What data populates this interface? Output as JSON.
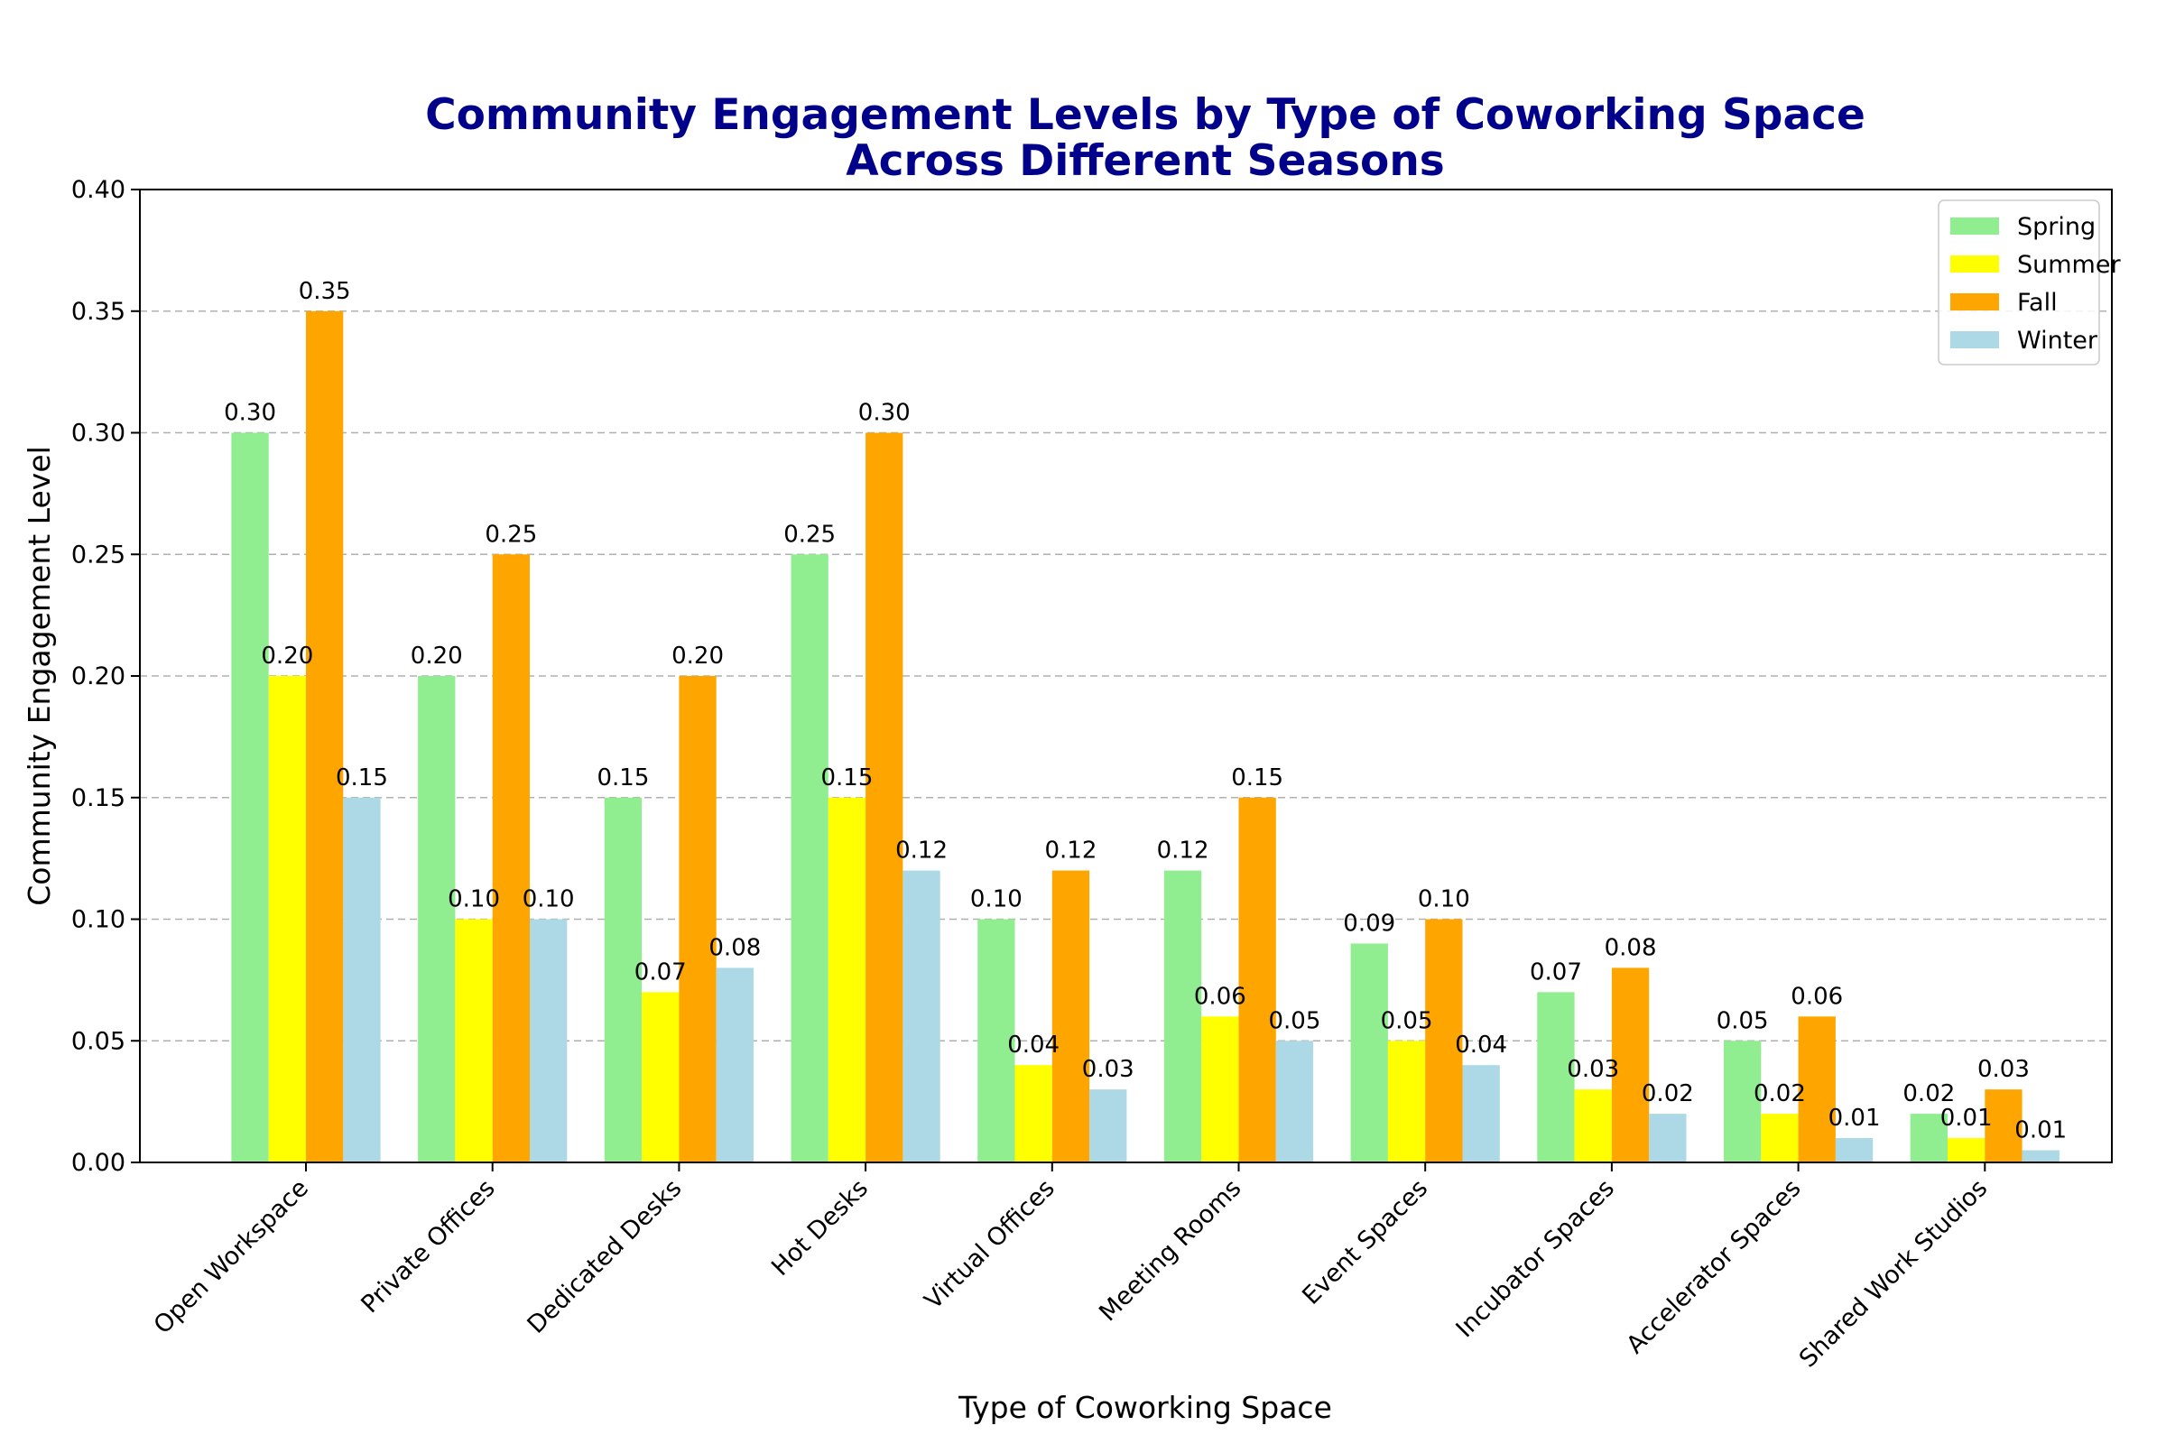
{
  "chart_data": {
    "type": "bar",
    "title": "Community Engagement Levels by Type of Coworking Space",
    "subtitle": "Across Different Seasons",
    "xlabel": "Type of Coworking Space",
    "ylabel": "Community Engagement Level",
    "ylim": [
      0,
      0.4
    ],
    "yticks": [
      "0.00",
      "0.05",
      "0.10",
      "0.15",
      "0.20",
      "0.25",
      "0.30",
      "0.35",
      "0.40"
    ],
    "grid": "y-dashed",
    "legend_position": "top-right",
    "categories": [
      "Open Workspace",
      "Private Offices",
      "Dedicated Desks",
      "Hot Desks",
      "Virtual Offices",
      "Meeting Rooms",
      "Event Spaces",
      "Incubator Spaces",
      "Accelerator Spaces",
      "Shared Work Studios"
    ],
    "series": [
      {
        "name": "Spring",
        "color": "#90ee90",
        "values": [
          0.3,
          0.2,
          0.15,
          0.25,
          0.1,
          0.12,
          0.09,
          0.07,
          0.05,
          0.02
        ],
        "labels": [
          "0.30",
          "0.20",
          "0.15",
          "0.25",
          "0.10",
          "0.12",
          "0.09",
          "0.07",
          "0.05",
          "0.02"
        ]
      },
      {
        "name": "Summer",
        "color": "#ffff00",
        "values": [
          0.2,
          0.1,
          0.07,
          0.15,
          0.04,
          0.06,
          0.05,
          0.03,
          0.02,
          0.01
        ],
        "labels": [
          "0.20",
          "0.10",
          "0.07",
          "0.15",
          "0.04",
          "0.06",
          "0.05",
          "0.03",
          "0.02",
          "0.01"
        ]
      },
      {
        "name": "Fall",
        "color": "#ffa500",
        "values": [
          0.35,
          0.25,
          0.2,
          0.3,
          0.12,
          0.15,
          0.1,
          0.08,
          0.06,
          0.03
        ],
        "labels": [
          "0.35",
          "0.25",
          "0.20",
          "0.30",
          "0.12",
          "0.15",
          "0.10",
          "0.08",
          "0.06",
          "0.03"
        ]
      },
      {
        "name": "Winter",
        "color": "#add8e6",
        "values": [
          0.15,
          0.1,
          0.08,
          0.12,
          0.03,
          0.05,
          0.04,
          0.02,
          0.01,
          0.005
        ],
        "labels": [
          "0.15",
          "0.10",
          "0.08",
          "0.12",
          "0.03",
          "0.05",
          "0.04",
          "0.02",
          "0.01",
          "0.01"
        ]
      }
    ]
  }
}
